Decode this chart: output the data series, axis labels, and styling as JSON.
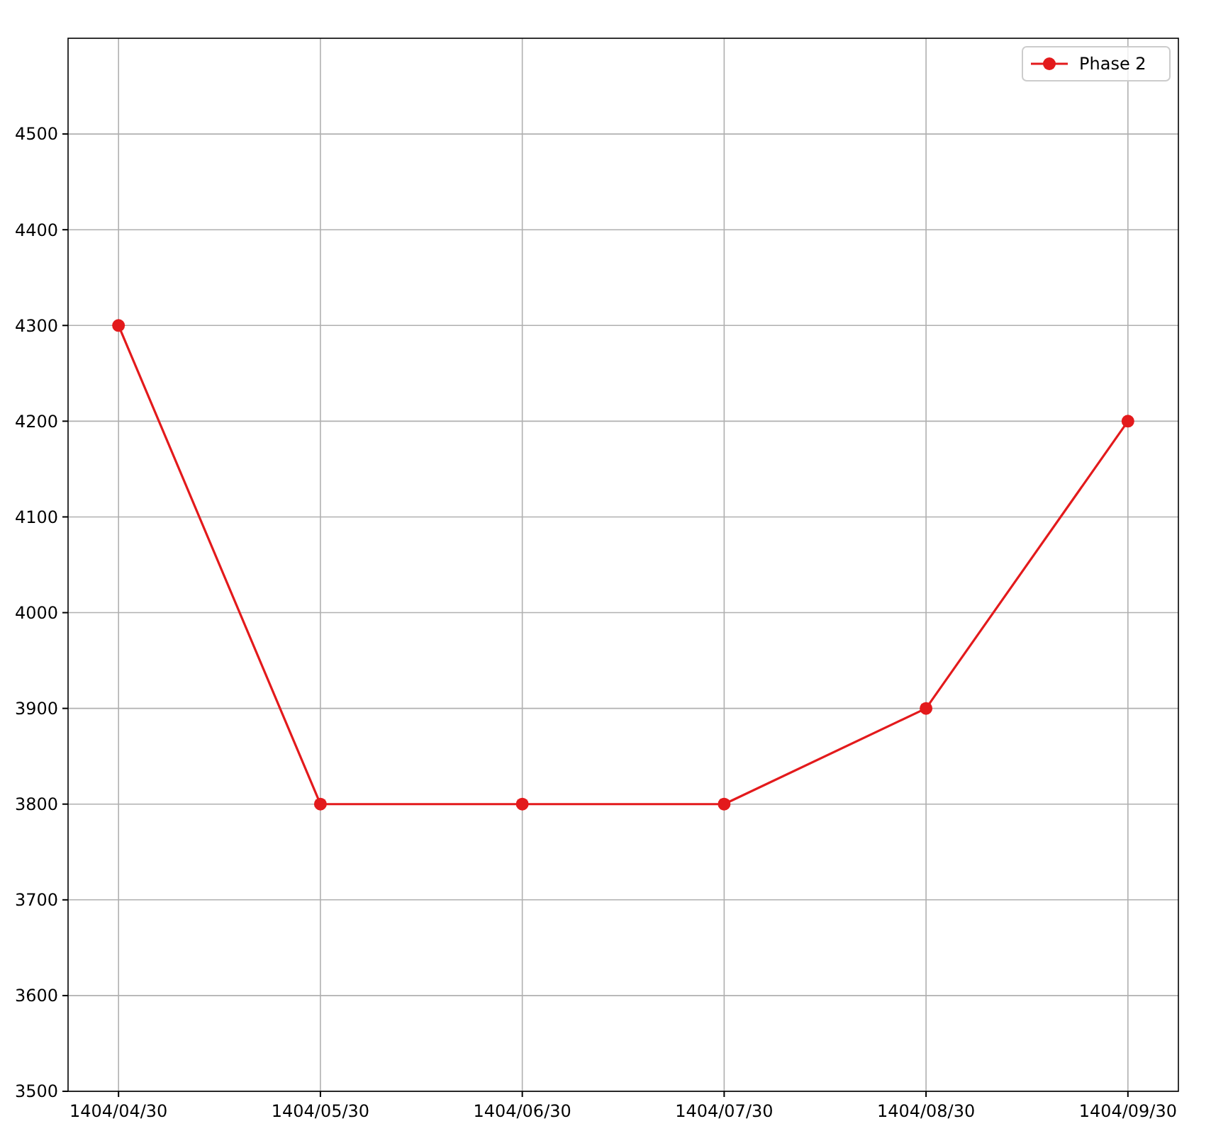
{
  "chart_data": {
    "type": "line",
    "categories": [
      "1404/04/30",
      "1404/05/30",
      "1404/06/30",
      "1404/07/30",
      "1404/08/30",
      "1404/09/30"
    ],
    "series": [
      {
        "name": "Phase 2",
        "color": "#e31a1c",
        "values": [
          4300,
          3800,
          3800,
          3800,
          3900,
          4200
        ]
      }
    ],
    "ylim": [
      3500,
      4600
    ],
    "yticks": [
      3500,
      3600,
      3700,
      3800,
      3900,
      4000,
      4100,
      4200,
      4300,
      4400,
      4500
    ],
    "grid": true,
    "legend": "top right",
    "marker": "circle",
    "line_style": "solid"
  }
}
